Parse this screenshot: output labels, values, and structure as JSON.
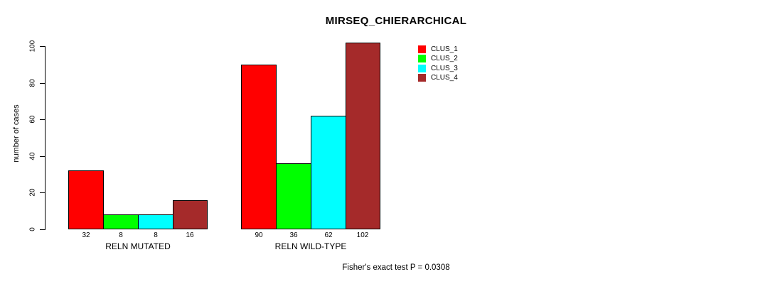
{
  "chart_data": {
    "type": "bar",
    "title": "MIRSEQ_CHIERARCHICAL",
    "ylabel": "number of cases",
    "ylim": [
      0,
      100
    ],
    "yticks": [
      0,
      20,
      40,
      60,
      80,
      100
    ],
    "grid": false,
    "legend_position": "top-right-inside",
    "bar_value_labels_shown": true,
    "categories": [
      "RELN MUTATED",
      "RELN WILD-TYPE"
    ],
    "series": [
      {
        "name": "CLUS_1",
        "color": "#ff0000",
        "values": [
          32,
          90
        ]
      },
      {
        "name": "CLUS_2",
        "color": "#00ff00",
        "values": [
          8,
          36
        ]
      },
      {
        "name": "CLUS_3",
        "color": "#00ffff",
        "values": [
          8,
          62
        ]
      },
      {
        "name": "CLUS_4",
        "color": "#a52a2a",
        "values": [
          16,
          102
        ]
      }
    ],
    "annotation": "Fisher's exact test P = 0.0308"
  }
}
